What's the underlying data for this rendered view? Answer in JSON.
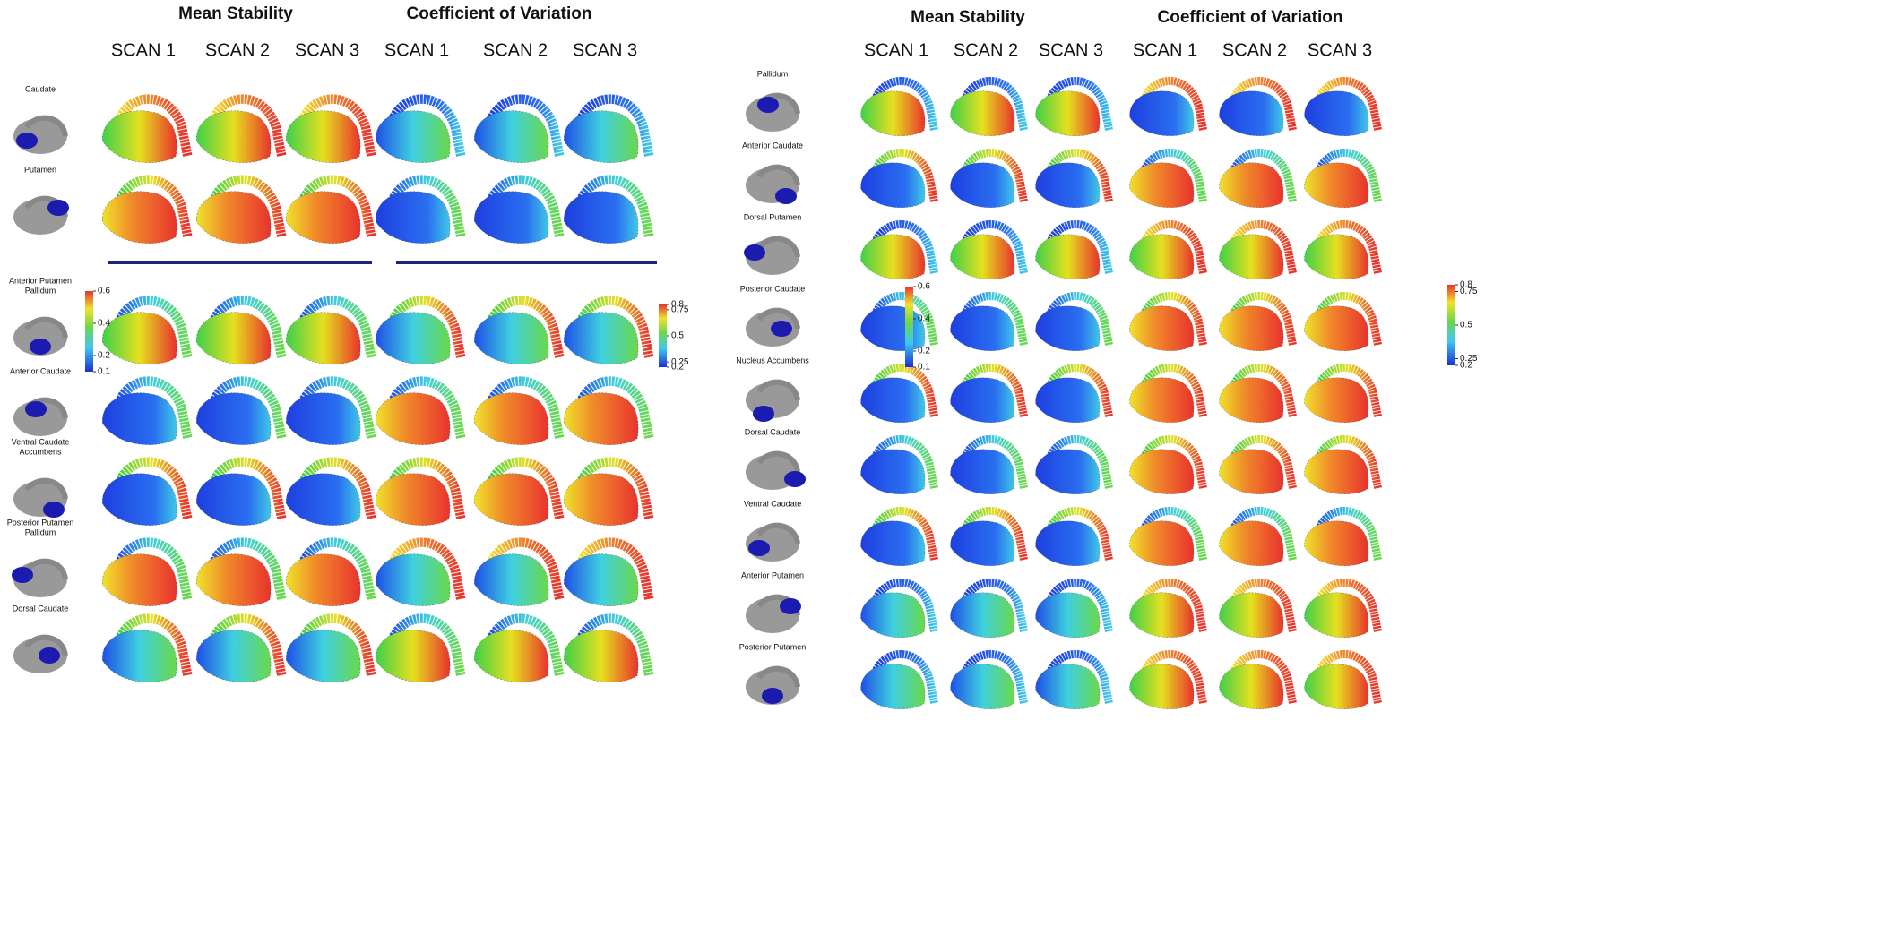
{
  "left": {
    "headers": {
      "mean_stability": "Mean Stability",
      "cv": "Coefficient of Variation"
    },
    "scans": [
      "SCAN 1",
      "SCAN 2",
      "SCAN 3"
    ],
    "rows": [
      [
        "Caudate"
      ],
      [
        "Putamen"
      ],
      [
        "Anterior Putamen",
        "Pallidum"
      ],
      [
        "Anterior Caudate"
      ],
      [
        "Ventral Caudate",
        "Accumbens"
      ],
      [
        "Posterior Putamen",
        "Pallidum"
      ],
      [
        "Dorsal Caudate"
      ]
    ],
    "colorbars": {
      "mean": [
        0.6,
        0.4,
        0.2,
        0.1
      ],
      "cv": [
        0.8,
        0.75,
        0.5,
        0.25,
        0.2
      ]
    }
  },
  "right": {
    "headers": {
      "mean_stability": "Mean Stability",
      "cv": "Coefficient of Variation"
    },
    "scans": [
      "SCAN 1",
      "SCAN 2",
      "SCAN 3"
    ],
    "rows": [
      [
        "Pallidum"
      ],
      [
        "Anterior Caudate"
      ],
      [
        "Dorsal Putamen"
      ],
      [
        "Posterior Caudate"
      ],
      [
        "Nucleus Accumbens"
      ],
      [
        "Dorsal Caudate"
      ],
      [
        "Ventral Caudate"
      ],
      [
        "Anterior Putamen"
      ],
      [
        "Posterior Putamen"
      ]
    ],
    "colorbars": {
      "mean": [
        0.6,
        0.4,
        0.2,
        0.1
      ],
      "cv": [
        0.8,
        0.75,
        0.5,
        0.25,
        0.2
      ]
    }
  }
}
